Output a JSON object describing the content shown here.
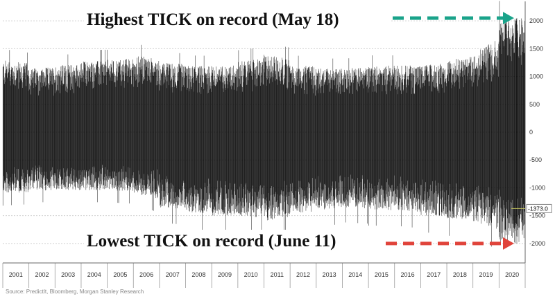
{
  "chart_data": {
    "type": "line",
    "title": "",
    "xlabel": "",
    "ylabel": "",
    "x_categories": [
      "2001",
      "2002",
      "2003",
      "2004",
      "2005",
      "2006",
      "2007",
      "2008",
      "2009",
      "2010",
      "2011",
      "2012",
      "2013",
      "2014",
      "2015",
      "2016",
      "2017",
      "2018",
      "2019",
      "2020"
    ],
    "ylim": [
      -2350,
      2350
    ],
    "yticks": [
      2000,
      1500,
      1000,
      500,
      0,
      -500,
      -1000,
      -1500,
      -2000
    ],
    "grid": true,
    "series": [
      {
        "high_envelope": [
          1300,
          1150,
          1200,
          1280,
          1300,
          1380,
          1250,
          1200,
          1180,
          1280,
          1400,
          1200,
          1150,
          1150,
          1200,
          1200,
          1200,
          1300,
          1450,
          2050
        ],
        "low_envelope": [
          -1100,
          -1050,
          -1050,
          -1050,
          -1050,
          -1100,
          -1350,
          -1450,
          -1500,
          -1500,
          -1600,
          -1450,
          -1400,
          -1350,
          -1400,
          -1400,
          -1500,
          -1550,
          -1600,
          -2000
        ],
        "color": "#000000"
      }
    ],
    "last_value": -1373,
    "last_value_label": "-1373.0",
    "annotations": [
      {
        "text": "Highest TICK on record (May 18)",
        "target_value": 2050,
        "arrow_color": "#1aa38a"
      },
      {
        "text": "Lowest TICK on record (June 11)",
        "target_value": -2000,
        "arrow_color": "#e0443b"
      }
    ],
    "source": "Source: PredictIt, Bloomberg, Morgan Stanley Research"
  }
}
